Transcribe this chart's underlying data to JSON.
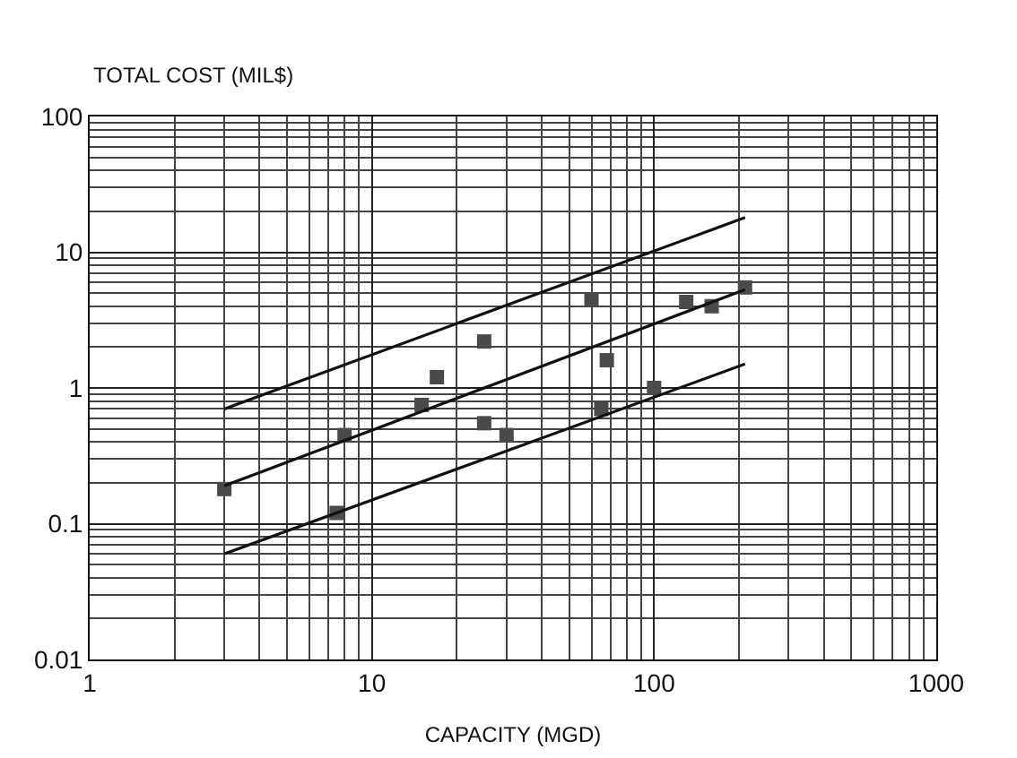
{
  "chart_data": {
    "type": "scatter",
    "ylabel": "TOTAL COST (MIL$)",
    "xlabel": "CAPACITY (MGD)",
    "log": "xy",
    "grid": true,
    "xlim": [
      1,
      1000
    ],
    "ylim": [
      0.01,
      100
    ],
    "xticks": [
      1,
      10,
      100,
      1000
    ],
    "yticks": [
      0.01,
      0.1,
      1,
      10,
      100
    ],
    "series": [
      {
        "marker": "square",
        "color": "#4a4a4a",
        "x": [
          3,
          7.5,
          8,
          15,
          17,
          25,
          25,
          30,
          60,
          65,
          68,
          100,
          130,
          160,
          210
        ],
        "values": [
          0.18,
          0.12,
          0.45,
          0.75,
          1.2,
          2.2,
          0.55,
          0.45,
          4.5,
          0.7,
          1.6,
          1.0,
          4.3,
          4.0,
          5.5
        ]
      },
      {
        "type": "line",
        "color": "#111111",
        "line_style": "solid",
        "x": [
          3,
          210
        ],
        "values": [
          0.19,
          5.3
        ]
      },
      {
        "type": "line",
        "color": "#111111",
        "line_style": "solid",
        "x": [
          3,
          210
        ],
        "values": [
          0.7,
          18
        ]
      },
      {
        "type": "line",
        "color": "#111111",
        "line_style": "solid",
        "x": [
          3,
          210
        ],
        "values": [
          0.06,
          1.5
        ]
      }
    ]
  }
}
